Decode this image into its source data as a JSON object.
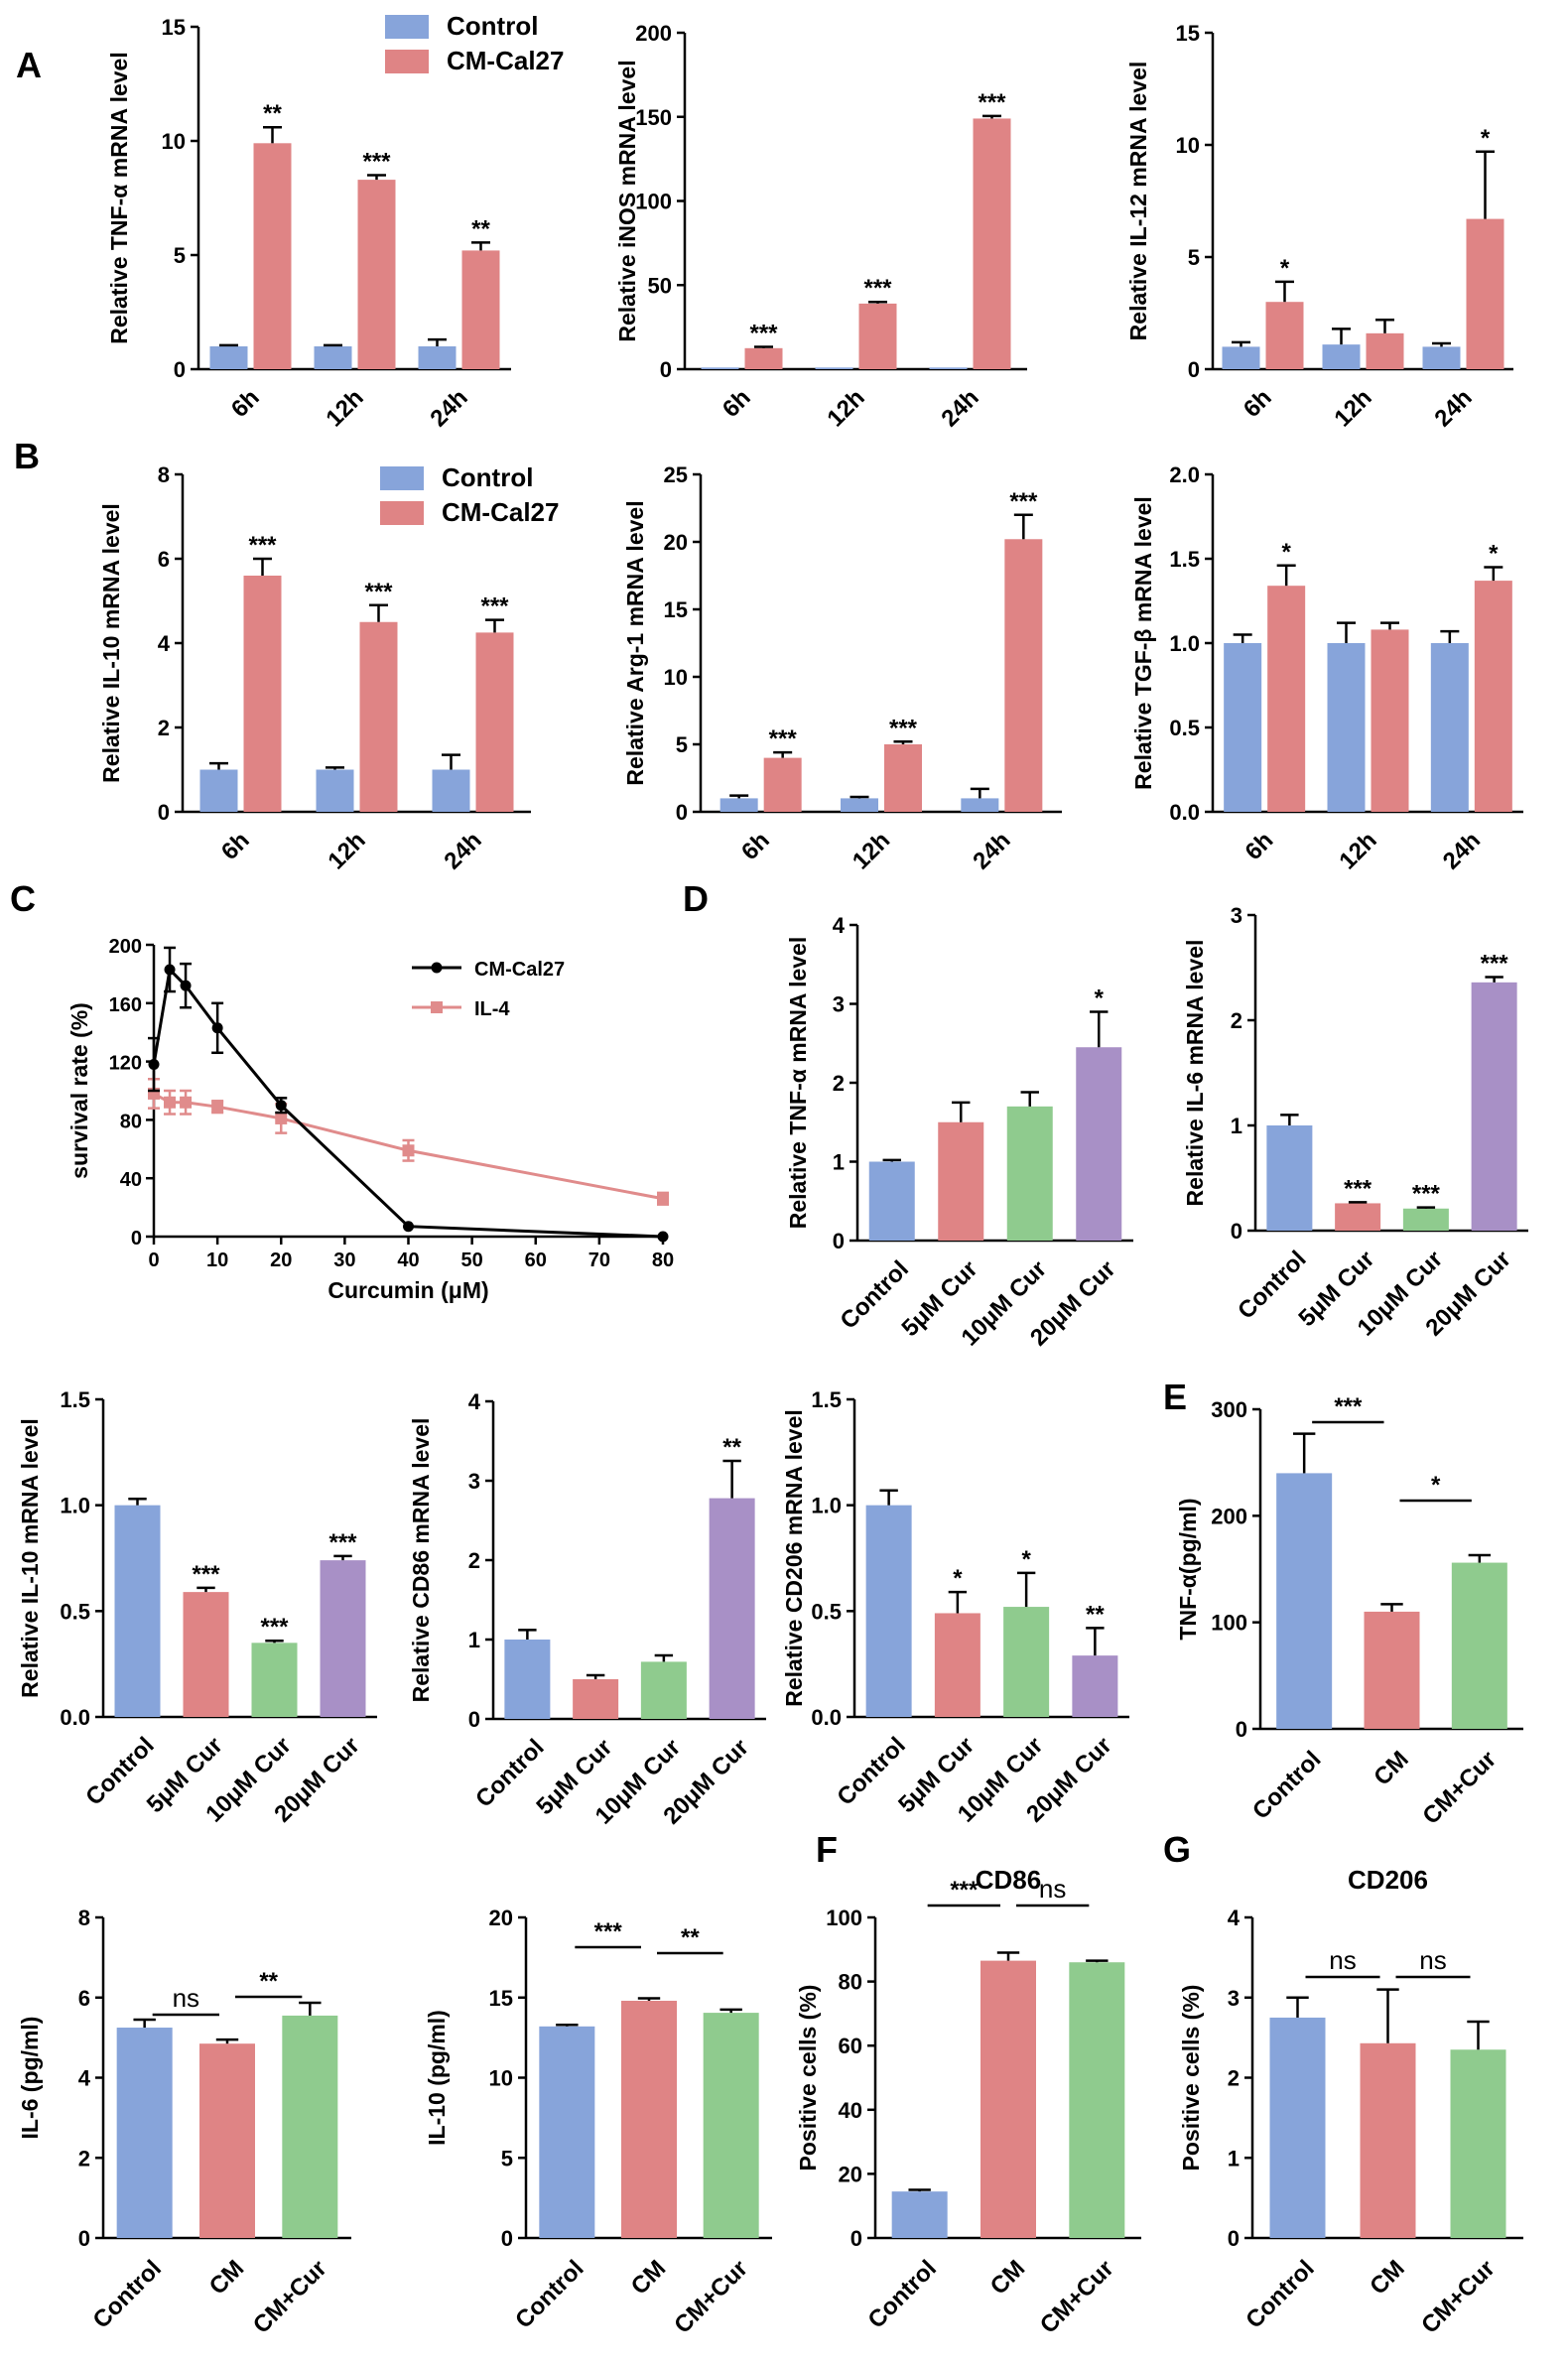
{
  "colors": {
    "blue": "#87a4da",
    "red": "#df8485",
    "green": "#8fcb8e",
    "purple": "#a890c6",
    "black": "#000000",
    "pink": "#e08b8b"
  },
  "panel_letters": {
    "A": "A",
    "B": "B",
    "C": "C",
    "D": "D",
    "E": "E",
    "F": "F",
    "G": "G"
  },
  "chart_data": [
    {
      "id": "A1",
      "type": "bar",
      "panel": "A",
      "ylabel": "Relative TNF-α mRNA level",
      "ylim": [
        0,
        15
      ],
      "yticks": [
        0,
        5,
        10,
        15
      ],
      "categories": [
        "6h",
        "12h",
        "24h"
      ],
      "legend": [
        "Control",
        "CM-Cal27"
      ],
      "series": [
        {
          "name": "Control",
          "values": [
            1.0,
            1.0,
            1.0
          ],
          "err": [
            0.05,
            0.05,
            0.3
          ]
        },
        {
          "name": "CM-Cal27",
          "values": [
            9.9,
            8.3,
            5.2
          ],
          "err": [
            0.7,
            0.2,
            0.35
          ]
        }
      ],
      "sig": [
        "**",
        "***",
        "**"
      ]
    },
    {
      "id": "A2",
      "type": "bar",
      "panel": "A",
      "ylabel": "Relative iNOS mRNA level",
      "ylim": [
        0,
        200
      ],
      "yticks": [
        0,
        50,
        100,
        150,
        200
      ],
      "categories": [
        "6h",
        "12h",
        "24h"
      ],
      "series": [
        {
          "name": "Control",
          "values": [
            1,
            1,
            1
          ],
          "err": [
            0,
            0,
            0
          ]
        },
        {
          "name": "CM-Cal27",
          "values": [
            12.5,
            39,
            149
          ],
          "err": [
            0.8,
            1,
            1.5
          ]
        }
      ],
      "sig": [
        "***",
        "***",
        "***"
      ]
    },
    {
      "id": "A3",
      "type": "bar",
      "panel": "A",
      "ylabel": "Relative IL-12 mRNA level",
      "ylim": [
        0,
        15
      ],
      "yticks": [
        0,
        5,
        10,
        15
      ],
      "categories": [
        "6h",
        "12h",
        "24h"
      ],
      "series": [
        {
          "name": "Control",
          "values": [
            1.0,
            1.1,
            1.0
          ],
          "err": [
            0.2,
            0.7,
            0.15
          ]
        },
        {
          "name": "CM-Cal27",
          "values": [
            3.0,
            1.6,
            6.7
          ],
          "err": [
            0.9,
            0.6,
            3.0
          ]
        }
      ],
      "sig": [
        "*",
        "",
        "*"
      ]
    },
    {
      "id": "B1",
      "type": "bar",
      "panel": "B",
      "ylabel": "Relative IL-10 mRNA level",
      "ylim": [
        0,
        8
      ],
      "yticks": [
        0,
        2,
        4,
        6,
        8
      ],
      "categories": [
        "6h",
        "12h",
        "24h"
      ],
      "legend": [
        "Control",
        "CM-Cal27"
      ],
      "series": [
        {
          "name": "Control",
          "values": [
            1.0,
            1.0,
            1.0
          ],
          "err": [
            0.15,
            0.05,
            0.35
          ]
        },
        {
          "name": "CM-Cal27",
          "values": [
            5.6,
            4.5,
            4.25
          ],
          "err": [
            0.4,
            0.4,
            0.3
          ]
        }
      ],
      "sig": [
        "***",
        "***",
        "***"
      ]
    },
    {
      "id": "B2",
      "type": "bar",
      "panel": "B",
      "ylabel": "Relative Arg-1 mRNA level",
      "ylim": [
        0,
        25
      ],
      "yticks": [
        0,
        5,
        10,
        15,
        20,
        25
      ],
      "categories": [
        "6h",
        "12h",
        "24h"
      ],
      "series": [
        {
          "name": "Control",
          "values": [
            1.0,
            1.0,
            1.0
          ],
          "err": [
            0.2,
            0.1,
            0.7
          ]
        },
        {
          "name": "CM-Cal27",
          "values": [
            4.0,
            5.0,
            20.2
          ],
          "err": [
            0.4,
            0.2,
            1.8
          ]
        }
      ],
      "sig": [
        "***",
        "***",
        "***"
      ]
    },
    {
      "id": "B3",
      "type": "bar",
      "panel": "B",
      "ylabel": "Relative TGF-β mRNA level",
      "ylim": [
        0,
        2.0
      ],
      "yticks": [
        "0.0",
        "0.5",
        "1.0",
        "1.5",
        "2.0"
      ],
      "categories": [
        "6h",
        "12h",
        "24h"
      ],
      "series": [
        {
          "name": "Control",
          "values": [
            1.0,
            1.0,
            1.0
          ],
          "err": [
            0.05,
            0.12,
            0.07
          ]
        },
        {
          "name": "CM-Cal27",
          "values": [
            1.34,
            1.08,
            1.37
          ],
          "err": [
            0.12,
            0.04,
            0.08
          ]
        }
      ],
      "sig": [
        "*",
        "",
        "*"
      ]
    },
    {
      "id": "C",
      "type": "line",
      "panel": "C",
      "ylabel": "survival rate (%)",
      "xlabel": "Curcumin (μM)",
      "xlim": [
        0,
        80
      ],
      "ylim": [
        0,
        200
      ],
      "xticks": [
        0,
        10,
        20,
        30,
        40,
        50,
        60,
        70,
        80
      ],
      "yticks": [
        0,
        40,
        80,
        120,
        160,
        200
      ],
      "series": [
        {
          "name": "CM-Cal27",
          "x": [
            0,
            2.5,
            5,
            10,
            20,
            40,
            80
          ],
          "y": [
            118,
            183,
            172,
            143,
            90,
            7,
            0
          ],
          "err": [
            18,
            15,
            15,
            17,
            5,
            0,
            0
          ]
        },
        {
          "name": "IL-4",
          "x": [
            0,
            2.5,
            5,
            10,
            20,
            40,
            80
          ],
          "y": [
            98,
            92,
            92,
            89,
            81,
            59,
            26
          ],
          "err": [
            10,
            8,
            8,
            4,
            10,
            7,
            4
          ]
        }
      ]
    },
    {
      "id": "D1",
      "type": "bar",
      "panel": "D",
      "ylabel": "Relative TNF-α mRNA level",
      "ylim": [
        0,
        4
      ],
      "yticks": [
        0,
        1,
        2,
        3,
        4
      ],
      "categories": [
        "Control",
        "5μM Cur",
        "10μM Cur",
        "20μM Cur"
      ],
      "values": [
        1.0,
        1.5,
        1.7,
        2.45
      ],
      "err": [
        0.02,
        0.25,
        0.18,
        0.45
      ],
      "sig": [
        "",
        "",
        "",
        "*"
      ]
    },
    {
      "id": "D2",
      "type": "bar",
      "panel": "D",
      "ylabel": "Relative IL-6 mRNA level",
      "ylim": [
        0,
        3
      ],
      "yticks": [
        0,
        1,
        2,
        3
      ],
      "categories": [
        "Control",
        "5μM Cur",
        "10μM Cur",
        "20μM Cur"
      ],
      "values": [
        1.0,
        0.26,
        0.21,
        2.36
      ],
      "err": [
        0.1,
        0.01,
        0.01,
        0.05
      ],
      "sig": [
        "",
        "***",
        "***",
        "***"
      ]
    },
    {
      "id": "D3",
      "type": "bar",
      "panel": "D",
      "ylabel": "Relative IL-10 mRNA level",
      "ylim": [
        0,
        1.5
      ],
      "yticks": [
        "0.0",
        "0.5",
        "1.0",
        "1.5"
      ],
      "categories": [
        "Control",
        "5μM Cur",
        "10μM Cur",
        "20μM Cur"
      ],
      "values": [
        1.0,
        0.59,
        0.35,
        0.74
      ],
      "err": [
        0.03,
        0.02,
        0.01,
        0.02
      ],
      "sig": [
        "",
        "***",
        "***",
        "***"
      ]
    },
    {
      "id": "D4",
      "type": "bar",
      "panel": "D",
      "ylabel": "Relative CD86 mRNA level",
      "ylim": [
        0,
        4
      ],
      "yticks": [
        0,
        1,
        2,
        3,
        4
      ],
      "categories": [
        "Control",
        "5μM Cur",
        "10μM Cur",
        "20μM Cur"
      ],
      "values": [
        1.0,
        0.5,
        0.72,
        2.78
      ],
      "err": [
        0.12,
        0.05,
        0.08,
        0.47
      ],
      "sig": [
        "",
        "",
        "",
        "**"
      ]
    },
    {
      "id": "D5",
      "type": "bar",
      "panel": "D",
      "ylabel": "Relative CD206 mRNA level",
      "ylim": [
        0,
        1.5
      ],
      "yticks": [
        "0.0",
        "0.5",
        "1.0",
        "1.5"
      ],
      "categories": [
        "Control",
        "5μM Cur",
        "10μM Cur",
        "20μM Cur"
      ],
      "values": [
        1.0,
        0.49,
        0.52,
        0.29
      ],
      "err": [
        0.07,
        0.1,
        0.16,
        0.13
      ],
      "sig": [
        "",
        "*",
        "*",
        "**"
      ]
    },
    {
      "id": "E1",
      "type": "bar",
      "panel": "E",
      "ylabel": "TNF-α(pg/ml)",
      "ylim": [
        0,
        300
      ],
      "yticks": [
        0,
        100,
        200,
        300
      ],
      "categories": [
        "Control",
        "CM",
        "CM+Cur"
      ],
      "values": [
        240,
        110,
        156
      ],
      "err": [
        37,
        7,
        7
      ],
      "brackets": [
        {
          "from": 0,
          "to": 1,
          "label": "***"
        },
        {
          "from": 1,
          "to": 2,
          "label": "*"
        }
      ]
    },
    {
      "id": "E2",
      "type": "bar",
      "panel": "E",
      "ylabel": "IL-6 (pg/ml)",
      "ylim": [
        0,
        8
      ],
      "yticks": [
        0,
        2,
        4,
        6,
        8
      ],
      "categories": [
        "Control",
        "CM",
        "CM+Cur"
      ],
      "values": [
        5.25,
        4.85,
        5.55
      ],
      "err": [
        0.2,
        0.1,
        0.32
      ],
      "brackets": [
        {
          "from": 0,
          "to": 1,
          "label": "ns"
        },
        {
          "from": 1,
          "to": 2,
          "label": "**"
        }
      ]
    },
    {
      "id": "E3",
      "type": "bar",
      "panel": "E",
      "ylabel": "IL-10 (pg/ml)",
      "ylim": [
        0,
        20
      ],
      "yticks": [
        0,
        5,
        10,
        15,
        20
      ],
      "categories": [
        "Control",
        "CM",
        "CM+Cur"
      ],
      "values": [
        13.2,
        14.8,
        14.05
      ],
      "err": [
        0.1,
        0.15,
        0.2
      ],
      "brackets": [
        {
          "from": 0,
          "to": 1,
          "label": "***"
        },
        {
          "from": 1,
          "to": 2,
          "label": "**"
        }
      ]
    },
    {
      "id": "F",
      "type": "bar",
      "panel": "F",
      "title": "CD86",
      "ylabel": "Positive cells (%)",
      "ylim": [
        0,
        100
      ],
      "yticks": [
        0,
        20,
        40,
        60,
        80,
        100
      ],
      "categories": [
        "Control",
        "CM",
        "CM+Cur"
      ],
      "values": [
        14.5,
        86.5,
        86
      ],
      "err": [
        0.5,
        2.5,
        0.5
      ],
      "brackets": [
        {
          "from": 0,
          "to": 1,
          "label": "***"
        },
        {
          "from": 1,
          "to": 2,
          "label": "ns"
        }
      ]
    },
    {
      "id": "G",
      "type": "bar",
      "panel": "G",
      "title": "CD206",
      "ylabel": "Positive cells (%)",
      "ylim": [
        0,
        4
      ],
      "yticks": [
        0,
        1,
        2,
        3,
        4
      ],
      "categories": [
        "Control",
        "CM",
        "CM+Cur"
      ],
      "values": [
        2.75,
        2.43,
        2.35
      ],
      "err": [
        0.25,
        0.67,
        0.35
      ],
      "brackets": [
        {
          "from": 0,
          "to": 1,
          "label": "ns"
        },
        {
          "from": 1,
          "to": 2,
          "label": "ns"
        }
      ]
    }
  ]
}
